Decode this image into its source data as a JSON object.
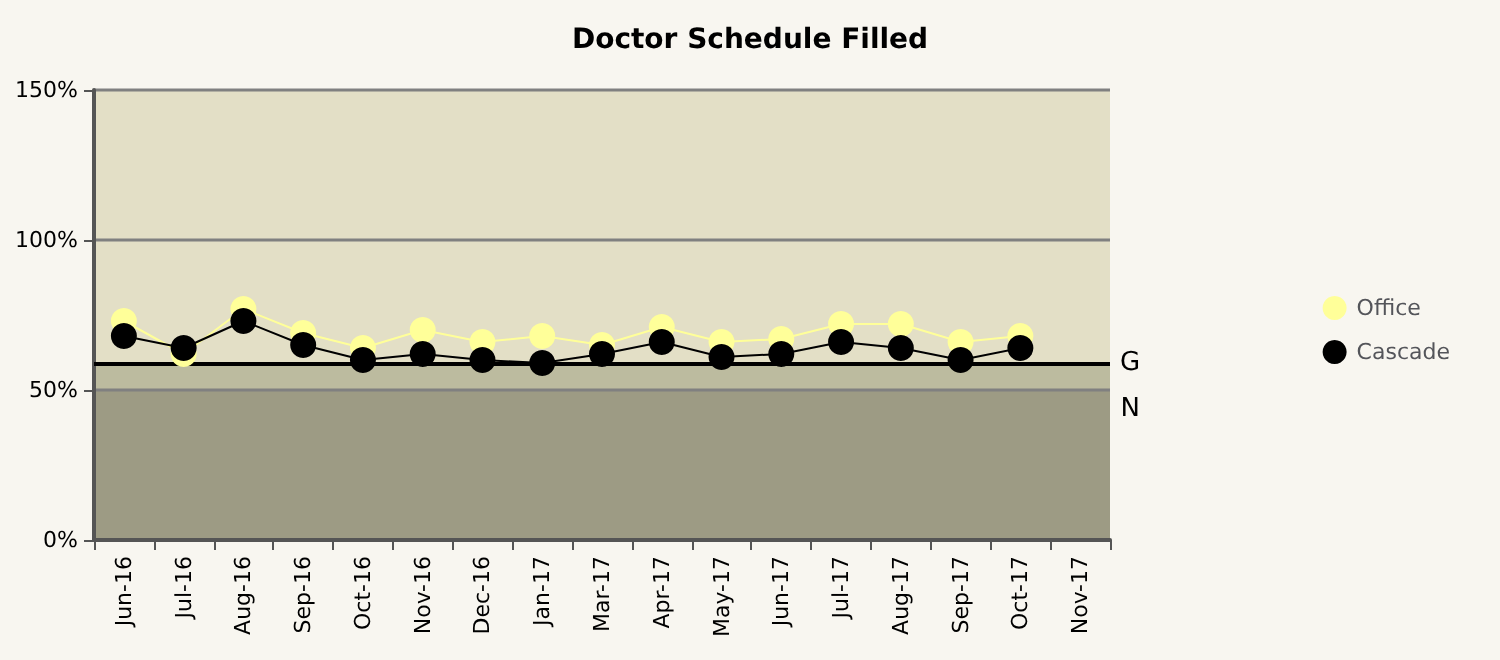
{
  "chart_data": {
    "type": "line",
    "title": "Doctor Schedule Filled",
    "categories": [
      "Jun-16",
      "Jul-16",
      "Aug-16",
      "Sep-16",
      "Oct-16",
      "Nov-16",
      "Dec-16",
      "Jan-17",
      "Mar-17",
      "Apr-17",
      "May-17",
      "Jun-17",
      "Jul-17",
      "Aug-17",
      "Sep-17",
      "Oct-17",
      "Nov-17"
    ],
    "series": [
      {
        "name": "Office",
        "color": "#ffff99",
        "values": [
          73,
          62,
          77,
          69,
          64,
          70,
          66,
          68,
          65,
          71,
          66,
          67,
          72,
          72,
          66,
          68,
          null
        ]
      },
      {
        "name": "Cascade",
        "color": "#000000",
        "values": [
          68,
          64,
          73,
          65,
          60,
          62,
          60,
          59,
          62,
          66,
          61,
          62,
          66,
          64,
          60,
          64,
          null
        ]
      }
    ],
    "ylim": [
      0,
      150
    ],
    "yticks": [
      {
        "value": 0,
        "label": "0%"
      },
      {
        "value": 50,
        "label": "50%"
      },
      {
        "value": 100,
        "label": "100%"
      },
      {
        "value": 150,
        "label": "150%"
      }
    ],
    "grid": "y",
    "legend": "right",
    "marker": "circle",
    "line_style": "solid",
    "ref_lines": [
      {
        "axis": "y",
        "value": 59,
        "label": "G",
        "color": "#000000"
      }
    ],
    "bands": [
      {
        "axis": "y",
        "from": 0,
        "to": 50,
        "label": "N",
        "color": "#9d9b84"
      },
      {
        "axis": "y",
        "from": 50,
        "to": 59,
        "color": "#bcbb9f"
      },
      {
        "axis": "y",
        "from": 59,
        "to": 150,
        "color": "#e3dfc6"
      }
    ]
  }
}
